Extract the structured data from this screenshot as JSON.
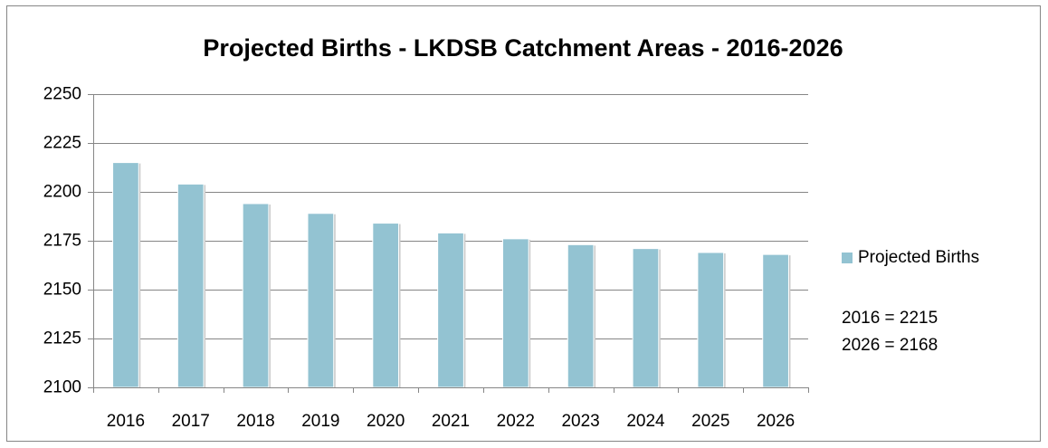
{
  "chart_data": {
    "type": "bar",
    "title": "Projected Births - LKDSB Catchment Areas - 2016-2026",
    "categories": [
      "2016",
      "2017",
      "2018",
      "2019",
      "2020",
      "2021",
      "2022",
      "2023",
      "2024",
      "2025",
      "2026"
    ],
    "series": [
      {
        "name": "Projected Births",
        "color": "#93c3d2",
        "values": [
          2215,
          2204,
          2194,
          2189,
          2184,
          2179,
          2176,
          2173,
          2171,
          2169,
          2168
        ]
      }
    ],
    "ylim": [
      2100,
      2250
    ],
    "yticks": [
      2100,
      2125,
      2150,
      2175,
      2200,
      2225,
      2250
    ],
    "grid": true,
    "legend": "right",
    "annotations": [
      "2016 = 2215",
      "2026 = 2168"
    ]
  }
}
